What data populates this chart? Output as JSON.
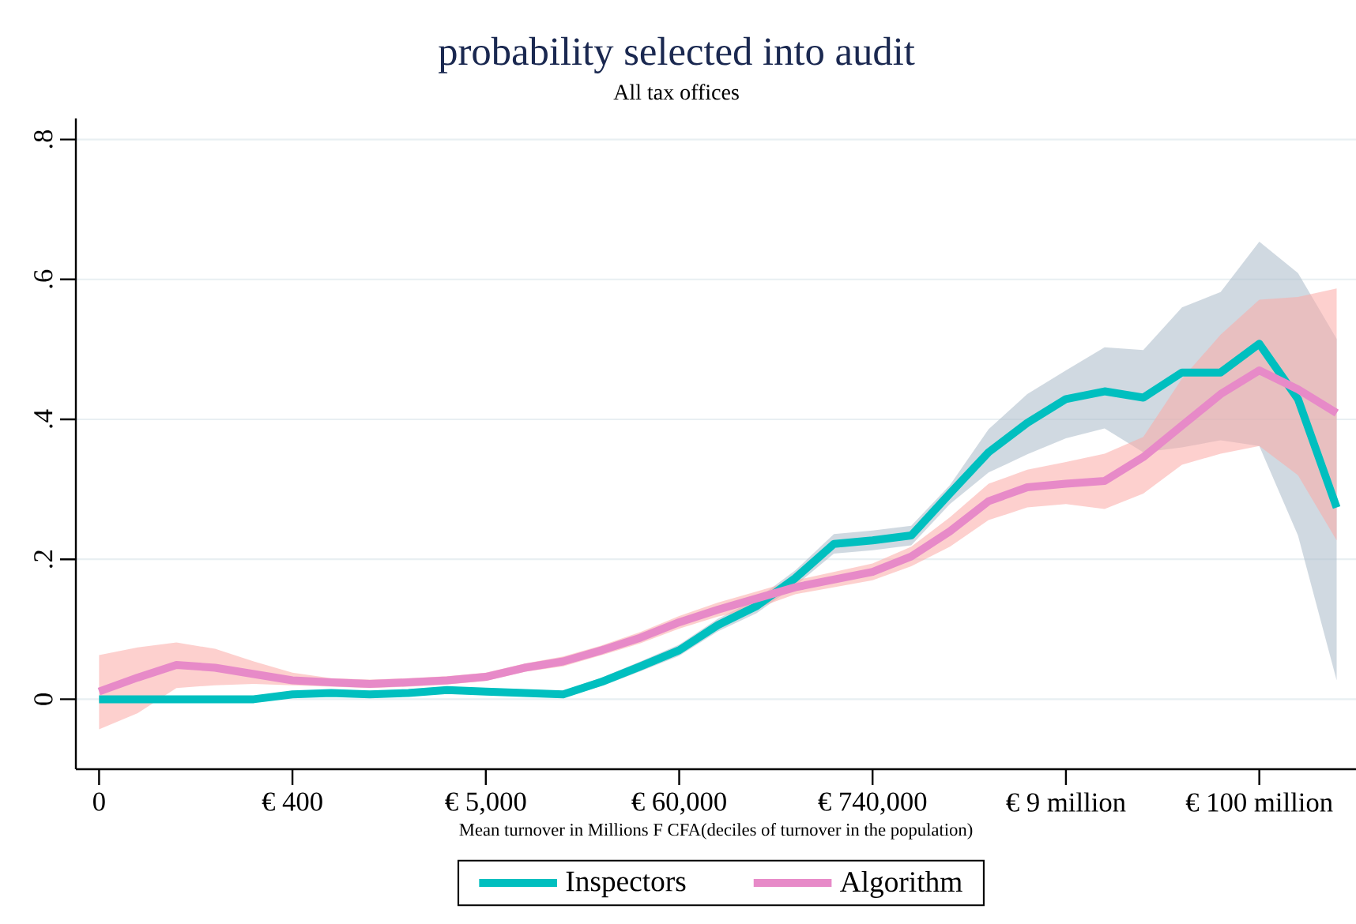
{
  "chart_data": {
    "type": "line",
    "title": "probability selected into audit",
    "subtitle": "All tax offices",
    "xlabel": "Mean turnover in Millions F CFA(deciles of turnover in the population)",
    "categories": [
      "0",
      null,
      null,
      null,
      null,
      "€ 400",
      null,
      null,
      null,
      null,
      "€ 5,000",
      null,
      null,
      null,
      null,
      "€ 60,000",
      null,
      null,
      null,
      null,
      "€ 740,000",
      null,
      null,
      null,
      null,
      "€ 9 million",
      null,
      null,
      null,
      null,
      "€ 100 million",
      null,
      null
    ],
    "ylim": [
      -0.1,
      0.83
    ],
    "yticks": [
      0,
      {
        "value": 0.2,
        "label": ".2"
      },
      {
        "value": 0.4,
        "label": ".4"
      },
      {
        "value": 0.6,
        "label": ".6"
      },
      {
        "value": 0.8,
        "label": ".8"
      }
    ],
    "grid": "y",
    "legend": "bottom",
    "line_style": "solid",
    "marker": "none",
    "series": [
      {
        "name": "Inspectors",
        "color": "#00bfbf",
        "values": [
          0,
          0,
          0,
          0,
          0,
          0.007,
          0.009,
          0.007,
          0.009,
          0.013,
          0.011,
          0.009,
          0.007,
          0.025,
          0.047,
          0.07,
          0.106,
          0.133,
          0.173,
          0.222,
          0.227,
          0.234,
          0.294,
          0.353,
          0.395,
          0.429,
          0.44,
          0.431,
          0.467,
          0.467,
          0.508,
          0.429,
          0.274
        ],
        "lower": [
          -0.004,
          -0.004,
          -0.004,
          -0.004,
          -0.004,
          0.002,
          0.004,
          0.002,
          0.004,
          0.008,
          0.006,
          0.004,
          0.002,
          0.019,
          0.04,
          0.062,
          0.097,
          0.123,
          0.162,
          0.208,
          0.213,
          0.22,
          0.279,
          0.324,
          0.35,
          0.373,
          0.387,
          0.353,
          0.36,
          0.37,
          0.362,
          0.234,
          0.027
        ],
        "upper": [
          0.004,
          0.004,
          0.004,
          0.004,
          0.004,
          0.012,
          0.014,
          0.012,
          0.014,
          0.018,
          0.016,
          0.014,
          0.012,
          0.031,
          0.054,
          0.078,
          0.115,
          0.143,
          0.184,
          0.236,
          0.241,
          0.248,
          0.306,
          0.386,
          0.436,
          0.47,
          0.503,
          0.499,
          0.56,
          0.582,
          0.654,
          0.609,
          0.515
        ]
      },
      {
        "name": "Algorithm",
        "color": "#e78ac8",
        "values": [
          0.011,
          0.031,
          0.049,
          0.045,
          0.036,
          0.027,
          0.024,
          0.022,
          0.024,
          0.027,
          0.032,
          0.045,
          0.054,
          0.07,
          0.088,
          0.11,
          0.128,
          0.144,
          0.16,
          0.171,
          0.182,
          0.204,
          0.24,
          0.283,
          0.303,
          0.308,
          0.312,
          0.346,
          0.391,
          0.436,
          0.47,
          0.443,
          0.409
        ],
        "lower": [
          -0.043,
          -0.02,
          0.016,
          0.02,
          0.022,
          0.02,
          0.018,
          0.016,
          0.018,
          0.021,
          0.026,
          0.039,
          0.047,
          0.063,
          0.08,
          0.101,
          0.118,
          0.13,
          0.15,
          0.16,
          0.17,
          0.19,
          0.218,
          0.256,
          0.274,
          0.279,
          0.272,
          0.294,
          0.335,
          0.351,
          0.362,
          0.32,
          0.227
        ],
        "upper": [
          0.063,
          0.074,
          0.081,
          0.072,
          0.054,
          0.038,
          0.03,
          0.028,
          0.03,
          0.033,
          0.038,
          0.051,
          0.061,
          0.077,
          0.096,
          0.119,
          0.138,
          0.154,
          0.17,
          0.182,
          0.194,
          0.218,
          0.26,
          0.308,
          0.328,
          0.339,
          0.351,
          0.375,
          0.458,
          0.521,
          0.571,
          0.575,
          0.587
        ]
      }
    ]
  }
}
